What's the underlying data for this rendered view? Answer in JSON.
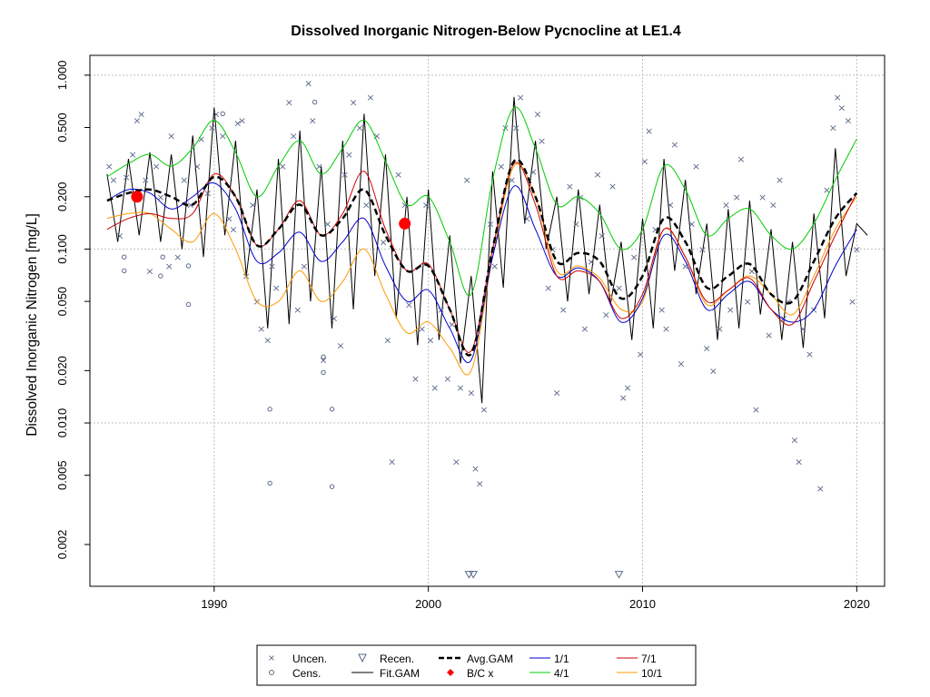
{
  "chart_data": {
    "type": "scatter",
    "title": "Dissolved Inorganic Nitrogen-Below Pycnocline at LE1.4",
    "xlabel": "",
    "ylabel": "Dissolved Inorganic Nitrogen [mg/L]",
    "y_scale": "log",
    "xlim": [
      1984.2,
      2021.3
    ],
    "ylim": [
      0.00115,
      1.3
    ],
    "grid": true,
    "x_ticks": [
      "1990",
      "2000",
      "2010",
      "2020"
    ],
    "x_tick_values": [
      1990,
      2000,
      2010,
      2020
    ],
    "y_ticks": [
      "0.002",
      "0.005",
      "0.010",
      "0.020",
      "0.050",
      "0.100",
      "0.200",
      "0.500",
      "1.000"
    ],
    "y_tick_values": [
      0.002,
      0.005,
      0.01,
      0.02,
      0.05,
      0.1,
      0.2,
      0.5,
      1.0
    ],
    "y_gridlines": [
      0.01,
      0.1,
      1.0
    ],
    "x_gridlines": [
      1990,
      2000,
      2010,
      2020
    ],
    "legend": {
      "placement": "bottom",
      "entries": [
        "Uncen.",
        "Recen.",
        "Avg.GAM",
        "1/1",
        "7/1",
        "Cens.",
        "Fit.GAM",
        "B/C x",
        "4/1",
        "10/1"
      ]
    },
    "colors": {
      "points": "#5a6a8a",
      "fit": "#000000",
      "avg": "#000000",
      "s_1_1": "#0000cc",
      "s_4_1": "#00cc00",
      "s_7_1": "#cc0000",
      "s_10_1": "#ff9900",
      "bc": "#ff0000"
    },
    "series": [
      {
        "name": "Avg.GAM",
        "x": [
          1985,
          1986,
          1987,
          1988,
          1989,
          1990,
          1991,
          1992,
          1993,
          1994,
          1995,
          1996,
          1997,
          1998,
          1999,
          2000,
          2001,
          2002,
          2003,
          2004,
          2005,
          2006,
          2007,
          2008,
          2009,
          2010,
          2011,
          2012,
          2013,
          2014,
          2015,
          2016,
          2017,
          2018,
          2019,
          2020
        ],
        "y": [
          0.19,
          0.21,
          0.22,
          0.2,
          0.18,
          0.26,
          0.2,
          0.105,
          0.13,
          0.18,
          0.12,
          0.15,
          0.22,
          0.12,
          0.075,
          0.08,
          0.045,
          0.025,
          0.1,
          0.32,
          0.2,
          0.085,
          0.095,
          0.085,
          0.052,
          0.07,
          0.15,
          0.11,
          0.06,
          0.07,
          0.082,
          0.055,
          0.05,
          0.085,
          0.15,
          0.21
        ]
      },
      {
        "name": "1/1",
        "x": [
          1985,
          1986,
          1987,
          1988,
          1989,
          1990,
          1991,
          1992,
          1993,
          1994,
          1995,
          1996,
          1997,
          1998,
          1999,
          2000,
          2001,
          2002,
          2003,
          2004,
          2005,
          2006,
          2007,
          2008,
          2009,
          2010,
          2011,
          2012,
          2013,
          2014,
          2015,
          2016,
          2017,
          2018,
          2019,
          2020
        ],
        "y": [
          0.19,
          0.22,
          0.21,
          0.17,
          0.2,
          0.24,
          0.17,
          0.085,
          0.095,
          0.125,
          0.085,
          0.11,
          0.15,
          0.08,
          0.05,
          0.058,
          0.035,
          0.023,
          0.09,
          0.23,
          0.13,
          0.07,
          0.078,
          0.065,
          0.038,
          0.052,
          0.12,
          0.085,
          0.045,
          0.055,
          0.065,
          0.045,
          0.038,
          0.045,
          0.08,
          0.13
        ]
      },
      {
        "name": "4/1",
        "x": [
          1985,
          1986,
          1987,
          1988,
          1989,
          1990,
          1991,
          1992,
          1993,
          1994,
          1995,
          1996,
          1997,
          1998,
          1999,
          2000,
          2001,
          2002,
          2003,
          2004,
          2005,
          2006,
          2007,
          2008,
          2009,
          2010,
          2011,
          2012,
          2013,
          2014,
          2015,
          2016,
          2017,
          2018,
          2019,
          2020
        ],
        "y": [
          0.26,
          0.31,
          0.35,
          0.3,
          0.38,
          0.55,
          0.36,
          0.2,
          0.3,
          0.42,
          0.27,
          0.38,
          0.55,
          0.32,
          0.18,
          0.2,
          0.11,
          0.055,
          0.25,
          0.65,
          0.38,
          0.18,
          0.2,
          0.16,
          0.1,
          0.13,
          0.3,
          0.22,
          0.12,
          0.15,
          0.17,
          0.12,
          0.1,
          0.14,
          0.25,
          0.43
        ]
      },
      {
        "name": "7/1",
        "x": [
          1985,
          1986,
          1987,
          1988,
          1989,
          1990,
          1991,
          1992,
          1993,
          1994,
          1995,
          1996,
          1997,
          1998,
          1999,
          2000,
          2001,
          2002,
          2003,
          2004,
          2005,
          2006,
          2007,
          2008,
          2009,
          2010,
          2011,
          2012,
          2013,
          2014,
          2015,
          2016,
          2017,
          2018,
          2019,
          2020
        ],
        "y": [
          0.13,
          0.15,
          0.16,
          0.15,
          0.16,
          0.27,
          0.2,
          0.105,
          0.13,
          0.19,
          0.12,
          0.16,
          0.28,
          0.13,
          0.075,
          0.082,
          0.045,
          0.026,
          0.1,
          0.31,
          0.18,
          0.07,
          0.075,
          0.065,
          0.04,
          0.055,
          0.13,
          0.09,
          0.05,
          0.058,
          0.068,
          0.045,
          0.037,
          0.065,
          0.12,
          0.21
        ]
      },
      {
        "name": "10/1",
        "x": [
          1985,
          1986,
          1987,
          1988,
          1989,
          1990,
          1991,
          1992,
          1993,
          1994,
          1995,
          1996,
          1997,
          1998,
          1999,
          2000,
          2001,
          2002,
          2003,
          2004,
          2005,
          2006,
          2007,
          2008,
          2009,
          2010,
          2011,
          2012,
          2013,
          2014,
          2015,
          2016,
          2017,
          2018,
          2019,
          2020
        ],
        "y": [
          0.15,
          0.16,
          0.16,
          0.13,
          0.11,
          0.16,
          0.1,
          0.05,
          0.05,
          0.075,
          0.05,
          0.065,
          0.1,
          0.055,
          0.033,
          0.038,
          0.027,
          0.02,
          0.09,
          0.3,
          0.2,
          0.075,
          0.08,
          0.068,
          0.045,
          0.05,
          0.13,
          0.09,
          0.048,
          0.058,
          0.07,
          0.055,
          0.042,
          0.07,
          0.13,
          0.2
        ]
      },
      {
        "name": "Fit.GAM",
        "x": [
          1985,
          1986,
          1987,
          1988,
          1989,
          1990,
          1991,
          1992,
          1993,
          1994,
          1995,
          1996,
          1997,
          1998,
          1999,
          2000,
          2001,
          2002,
          2003,
          2004,
          2005,
          2006,
          2007,
          2008,
          2009,
          2010,
          2011,
          2012,
          2013,
          2014,
          2015,
          2016,
          2017,
          2018,
          2019,
          2020
        ],
        "y_high": [
          0.27,
          0.33,
          0.36,
          0.35,
          0.45,
          0.65,
          0.42,
          0.22,
          0.33,
          0.48,
          0.3,
          0.42,
          0.6,
          0.35,
          0.2,
          0.22,
          0.12,
          0.07,
          0.28,
          0.75,
          0.42,
          0.2,
          0.22,
          0.18,
          0.11,
          0.15,
          0.33,
          0.25,
          0.14,
          0.17,
          0.19,
          0.13,
          0.11,
          0.16,
          0.38,
          0.14
        ],
        "y_low": [
          0.11,
          0.12,
          0.11,
          0.1,
          0.09,
          0.12,
          0.07,
          0.035,
          0.037,
          0.05,
          0.035,
          0.045,
          0.07,
          0.04,
          0.028,
          0.03,
          0.022,
          0.013,
          0.06,
          0.14,
          0.1,
          0.05,
          0.055,
          0.048,
          0.03,
          0.035,
          0.075,
          0.055,
          0.03,
          0.035,
          0.042,
          0.03,
          0.027,
          0.04,
          0.07,
          0.12
        ]
      },
      {
        "name": "B/C x",
        "x": [
          1986.4,
          1998.9
        ],
        "y": [
          0.2,
          0.14
        ]
      }
    ],
    "points": {
      "uncen": [
        [
          1985.1,
          0.3
        ],
        [
          1985.3,
          0.25
        ],
        [
          1985.6,
          0.12
        ],
        [
          1985.9,
          0.26
        ],
        [
          1986.2,
          0.35
        ],
        [
          1986.4,
          0.55
        ],
        [
          1986.6,
          0.6
        ],
        [
          1986.8,
          0.25
        ],
        [
          1987.0,
          0.075
        ],
        [
          1987.3,
          0.3
        ],
        [
          1987.5,
          0.2
        ],
        [
          1987.9,
          0.08
        ],
        [
          1988.0,
          0.45
        ],
        [
          1988.3,
          0.09
        ],
        [
          1988.6,
          0.25
        ],
        [
          1988.9,
          0.18
        ],
        [
          1989.2,
          0.3
        ],
        [
          1989.4,
          0.43
        ],
        [
          1989.7,
          0.21
        ],
        [
          1989.9,
          0.5
        ],
        [
          1990.1,
          0.6
        ],
        [
          1990.4,
          0.45
        ],
        [
          1990.7,
          0.15
        ],
        [
          1990.9,
          0.13
        ],
        [
          1991.1,
          0.53
        ],
        [
          1991.3,
          0.55
        ],
        [
          1991.5,
          0.07
        ],
        [
          1991.8,
          0.18
        ],
        [
          1992.0,
          0.05
        ],
        [
          1992.2,
          0.035
        ],
        [
          1992.5,
          0.03
        ],
        [
          1992.7,
          0.08
        ],
        [
          1992.9,
          0.06
        ],
        [
          1993.2,
          0.3
        ],
        [
          1993.5,
          0.7
        ],
        [
          1993.7,
          0.45
        ],
        [
          1993.9,
          0.045
        ],
        [
          1994.2,
          0.08
        ],
        [
          1994.4,
          0.9
        ],
        [
          1994.6,
          0.55
        ],
        [
          1994.9,
          0.3
        ],
        [
          1995.1,
          0.023
        ],
        [
          1995.3,
          0.14
        ],
        [
          1995.6,
          0.04
        ],
        [
          1995.9,
          0.028
        ],
        [
          1996.1,
          0.27
        ],
        [
          1996.3,
          0.35
        ],
        [
          1996.5,
          0.7
        ],
        [
          1996.8,
          0.5
        ],
        [
          1997.1,
          0.18
        ],
        [
          1997.3,
          0.75
        ],
        [
          1997.6,
          0.45
        ],
        [
          1997.9,
          0.11
        ],
        [
          1998.1,
          0.03
        ],
        [
          1998.3,
          0.006
        ],
        [
          1998.6,
          0.27
        ],
        [
          1998.9,
          0.18
        ],
        [
          1999.1,
          0.048
        ],
        [
          1999.4,
          0.018
        ],
        [
          1999.7,
          0.035
        ],
        [
          1999.9,
          0.18
        ],
        [
          2000.1,
          0.03
        ],
        [
          2000.3,
          0.016
        ],
        [
          2000.6,
          0.045
        ],
        [
          2000.9,
          0.018
        ],
        [
          2001.1,
          0.037
        ],
        [
          2001.3,
          0.006
        ],
        [
          2001.5,
          0.016
        ],
        [
          2001.8,
          0.25
        ],
        [
          2002.0,
          0.015
        ],
        [
          2002.2,
          0.0055
        ],
        [
          2002.4,
          0.0045
        ],
        [
          2002.6,
          0.012
        ],
        [
          2002.9,
          0.14
        ],
        [
          2003.1,
          0.08
        ],
        [
          2003.4,
          0.3
        ],
        [
          2003.6,
          0.5
        ],
        [
          2003.9,
          0.25
        ],
        [
          2004.1,
          0.5
        ],
        [
          2004.3,
          0.75
        ],
        [
          2004.6,
          0.15
        ],
        [
          2004.9,
          0.28
        ],
        [
          2005.1,
          0.6
        ],
        [
          2005.3,
          0.42
        ],
        [
          2005.6,
          0.06
        ],
        [
          2005.8,
          0.1
        ],
        [
          2006.0,
          0.015
        ],
        [
          2006.3,
          0.045
        ],
        [
          2006.6,
          0.23
        ],
        [
          2006.9,
          0.14
        ],
        [
          2007.1,
          0.2
        ],
        [
          2007.3,
          0.035
        ],
        [
          2007.6,
          0.085
        ],
        [
          2007.9,
          0.27
        ],
        [
          2008.1,
          0.12
        ],
        [
          2008.3,
          0.042
        ],
        [
          2008.6,
          0.23
        ],
        [
          2008.9,
          0.06
        ],
        [
          2009.1,
          0.014
        ],
        [
          2009.3,
          0.016
        ],
        [
          2009.6,
          0.09
        ],
        [
          2009.9,
          0.025
        ],
        [
          2010.1,
          0.32
        ],
        [
          2010.3,
          0.48
        ],
        [
          2010.6,
          0.13
        ],
        [
          2010.9,
          0.045
        ],
        [
          2011.1,
          0.035
        ],
        [
          2011.3,
          0.18
        ],
        [
          2011.5,
          0.4
        ],
        [
          2011.8,
          0.022
        ],
        [
          2012.0,
          0.08
        ],
        [
          2012.3,
          0.14
        ],
        [
          2012.5,
          0.3
        ],
        [
          2012.8,
          0.1
        ],
        [
          2013.0,
          0.027
        ],
        [
          2013.3,
          0.02
        ],
        [
          2013.6,
          0.035
        ],
        [
          2013.9,
          0.18
        ],
        [
          2014.1,
          0.045
        ],
        [
          2014.4,
          0.2
        ],
        [
          2014.6,
          0.33
        ],
        [
          2014.9,
          0.05
        ],
        [
          2015.1,
          0.075
        ],
        [
          2015.3,
          0.012
        ],
        [
          2015.6,
          0.2
        ],
        [
          2015.9,
          0.032
        ],
        [
          2016.1,
          0.18
        ],
        [
          2016.4,
          0.25
        ],
        [
          2016.6,
          0.04
        ],
        [
          2016.8,
          0.05
        ],
        [
          2017.1,
          0.008
        ],
        [
          2017.3,
          0.006
        ],
        [
          2017.5,
          0.035
        ],
        [
          2017.8,
          0.025
        ],
        [
          2018.0,
          0.045
        ],
        [
          2018.3,
          0.0042
        ],
        [
          2018.6,
          0.22
        ],
        [
          2018.9,
          0.5
        ],
        [
          2019.1,
          0.75
        ],
        [
          2019.3,
          0.65
        ],
        [
          2019.6,
          0.55
        ],
        [
          2019.8,
          0.05
        ],
        [
          2020.0,
          0.1
        ]
      ],
      "cens": [
        [
          1985.8,
          0.09
        ],
        [
          1985.8,
          0.075
        ],
        [
          1987.5,
          0.07
        ],
        [
          1987.6,
          0.09
        ],
        [
          1988.8,
          0.08
        ],
        [
          1988.8,
          0.048
        ],
        [
          1992.6,
          0.012
        ],
        [
          1992.6,
          0.0045
        ],
        [
          1995.1,
          0.024
        ],
        [
          1995.1,
          0.0195
        ],
        [
          1995.5,
          0.012
        ],
        [
          1995.5,
          0.0043
        ],
        [
          1990.4,
          0.6
        ],
        [
          1994.7,
          0.7
        ]
      ],
      "recen": [
        [
          2001.9,
          0.00135
        ],
        [
          2002.1,
          0.00135
        ],
        [
          2008.9,
          0.00135
        ]
      ]
    }
  }
}
